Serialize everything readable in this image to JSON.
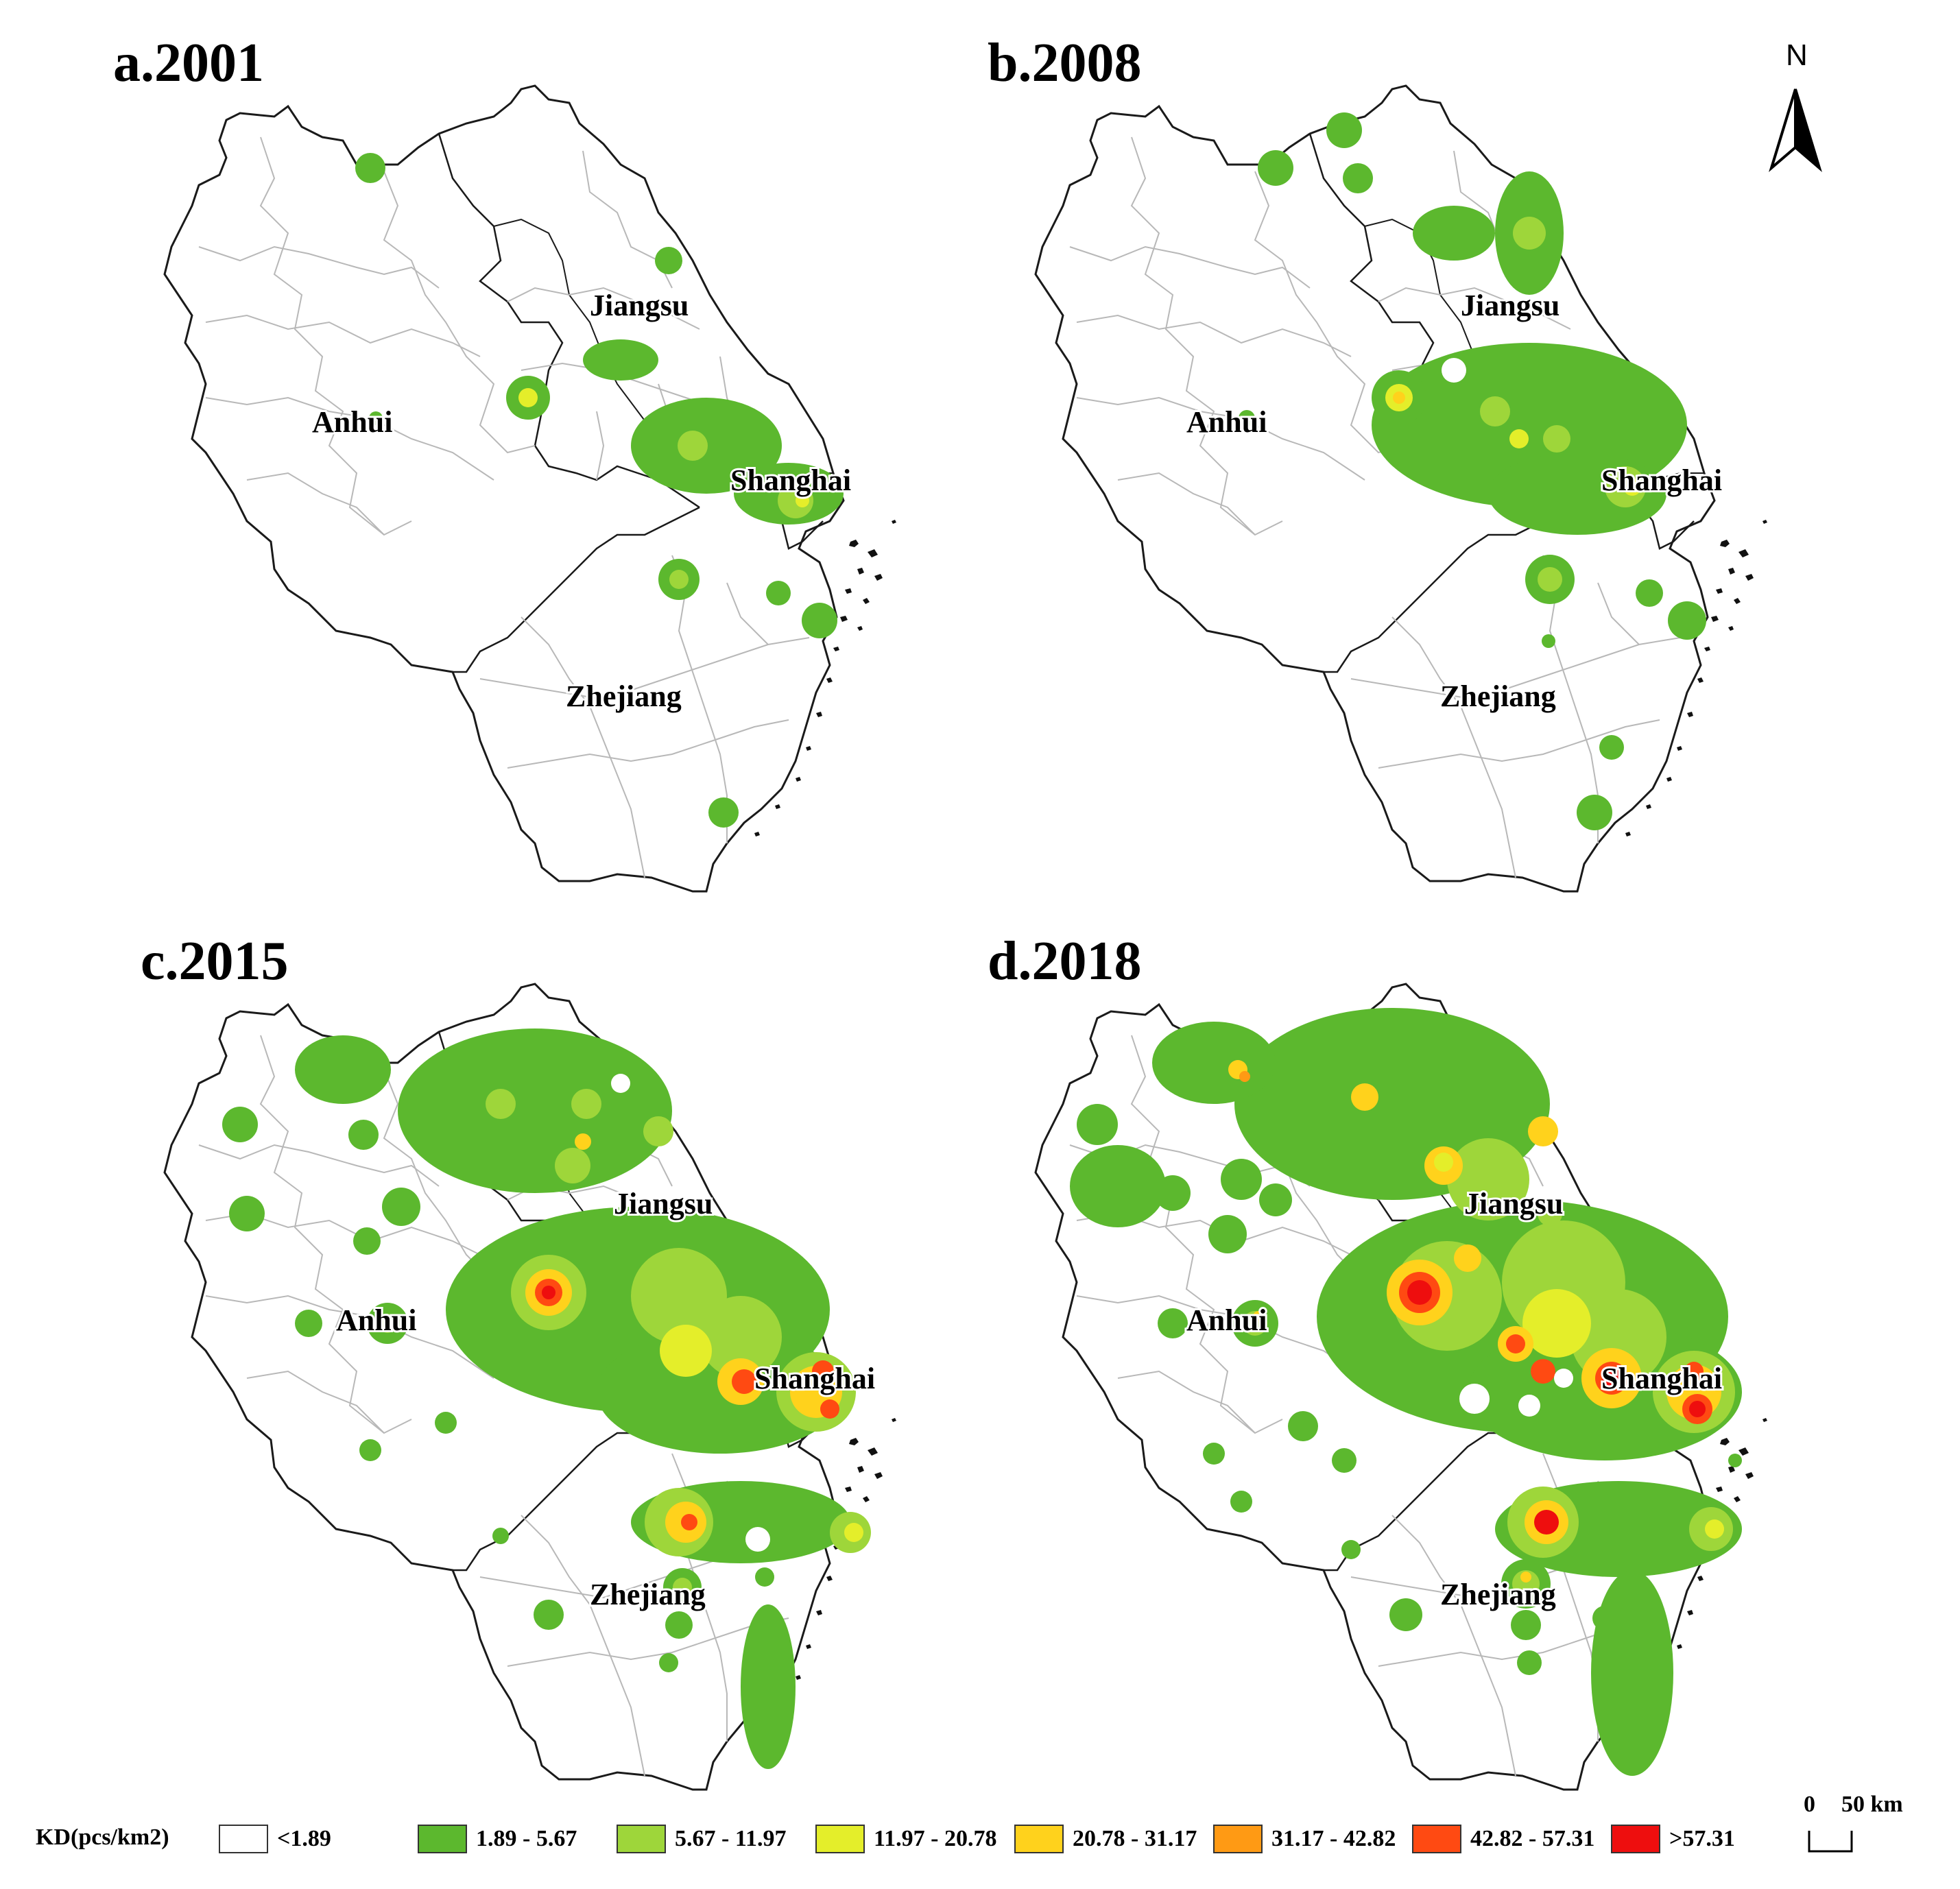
{
  "panels": [
    {
      "id": "a",
      "title": "a.2001"
    },
    {
      "id": "b",
      "title": "b.2008"
    },
    {
      "id": "c",
      "title": "c.2015"
    },
    {
      "id": "d",
      "title": "d.2018"
    }
  ],
  "provinces": [
    "Jiangsu",
    "Anhui",
    "Shanghai",
    "Zhejiang"
  ],
  "north_label": "N",
  "scale": {
    "label_zero": "0",
    "label_km": "50 km"
  },
  "legend": {
    "title": "KD(pcs/km2)",
    "classes": [
      {
        "label": "<1.89",
        "color": "#ffffff"
      },
      {
        "label": "1.89 - 5.67",
        "color": "#5cb82e"
      },
      {
        "label": "5.67 - 11.97",
        "color": "#9ed63a"
      },
      {
        "label": "11.97 - 20.78",
        "color": "#e4ee2a"
      },
      {
        "label": "20.78 - 31.17",
        "color": "#ffd21c"
      },
      {
        "label": "31.17 - 42.82",
        "color": "#ff9a14"
      },
      {
        "label": "42.82 - 57.31",
        "color": "#ff4a12"
      },
      {
        "label": ">57.31",
        "color": "#ee0e0e"
      }
    ]
  }
}
